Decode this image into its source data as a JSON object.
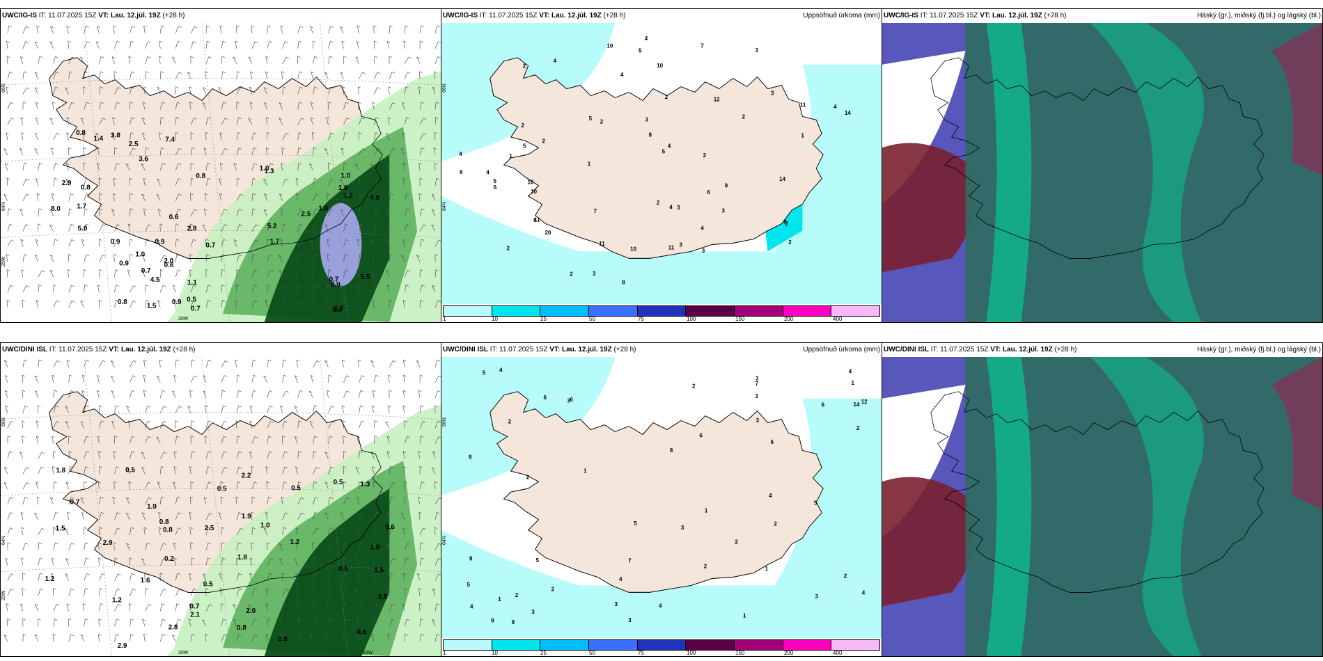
{
  "panels": [
    {
      "model": "UWC/IG-IS",
      "it_label": "IT:",
      "it": "11.07.2025 15Z",
      "vt_label": "VT:",
      "vt": "Lau. 12.júl. 19Z",
      "lead": "(+28 h)",
      "right_title": "",
      "values": [
        "0.8",
        "1.7",
        "0.9",
        "2.0",
        "1.5",
        "0.9",
        "2.5",
        "0.9",
        "0.6",
        "0.7",
        "1.0",
        "0.7",
        "0.6",
        "1.0",
        "1.1",
        "0.9",
        "0.7",
        "0.8",
        "0.5",
        "1.0",
        "1.7",
        "1.0",
        "1.2",
        "0.7",
        "0.8",
        "0.9",
        "2.5",
        "3.6",
        "5.2",
        "4.9",
        "5.0",
        "8.0",
        "7.4",
        "5.5",
        "6.3",
        "4.5",
        "2.9",
        "2.8",
        "1.4",
        "1.0",
        "1.7",
        "3.8",
        "1.3",
        "0.8"
      ],
      "lat_labels": [
        "66N",
        "64N",
        "25W"
      ],
      "lon_labels": [
        "20W"
      ]
    },
    {
      "model": "UWC/IG-IS",
      "it_label": "IT:",
      "it": "11.07.2025 15Z",
      "vt_label": "VT:",
      "vt": "Lau. 12.júl. 19Z",
      "lead": "(+28 h)",
      "right_title": "Uppsöfnuð úrkoma (mm)",
      "values": [
        "2",
        "3",
        "4",
        "3",
        "4",
        "2",
        "10",
        "11",
        "11",
        "2",
        "4",
        "4",
        "3",
        "5",
        "8",
        "10",
        "2",
        "4",
        "6",
        "3",
        "3",
        "5",
        "4",
        "4",
        "8",
        "11",
        "5",
        "7",
        "2",
        "9",
        "2",
        "20",
        "3",
        "2",
        "2",
        "6",
        "4",
        "2",
        "12",
        "14",
        "14",
        "10",
        "10",
        "16",
        "6",
        "5",
        "6",
        "11",
        "7",
        "4",
        "2",
        "2",
        "3",
        "1",
        "1",
        "3",
        "5",
        "8",
        "2",
        "1"
      ],
      "lat_labels": [
        "66N",
        "64N"
      ],
      "lon_labels": []
    },
    {
      "model": "UWC/IG-IS",
      "it_label": "IT:",
      "it": "11.07.2025 15Z",
      "vt_label": "VT:",
      "vt": "Lau. 12.júl. 19Z",
      "lead": "(+28 h)",
      "right_title": "Háský (gr.), miðský (fj.bl.) og lágský (bl.)",
      "values": [],
      "lat_labels": [],
      "lon_labels": []
    },
    {
      "model": "UWC/DINI ISL",
      "it_label": "IT:",
      "it": "11.07.2025 15Z",
      "vt_label": "VT:",
      "vt": "Lau. 12.júl. 19Z",
      "lead": "(+28 h)",
      "right_title": "",
      "values": [
        "0.5",
        "1.2",
        "0.5",
        "0.5",
        "0.6",
        "0.8",
        "0.7",
        "1.2",
        "0.5",
        "0.8",
        "1.5",
        "1.9",
        "2.2",
        "2.8",
        "2.9",
        "2.5",
        "0.7",
        "0.6",
        "0.2",
        "1.0",
        "0.8",
        "0.8",
        "1.0",
        "2.0",
        "2.1",
        "2.8",
        "1.8",
        "1.6",
        "2.9",
        "1.5",
        "0.5",
        "0.5",
        "1.3",
        "1.9",
        "1.8",
        "1.2"
      ],
      "lat_labels": [
        "66N",
        "64N",
        "25W"
      ],
      "lon_labels": [
        "20W",
        "15W"
      ]
    },
    {
      "model": "UWC/DINI ISL",
      "it_label": "IT:",
      "it": "11.07.2025 15Z",
      "vt_label": "VT:",
      "vt": "Lau. 12.júl. 19Z",
      "lead": "(+28 h)",
      "right_title": "Uppsöfnuð úrkoma (mm)",
      "values": [
        "3",
        "4",
        "3",
        "4",
        "2",
        "12",
        "3",
        "5",
        "8",
        "5",
        "2",
        "3",
        "6",
        "2",
        "7",
        "1",
        "5",
        "5",
        "3",
        "2",
        "4",
        "2",
        "1",
        "6",
        "14",
        "2",
        "1",
        "3",
        "8",
        "4",
        "6",
        "9",
        "8",
        "6",
        "5",
        "4",
        "4",
        "3",
        "1",
        "2",
        "3",
        "6",
        "7",
        "9",
        "2",
        "1",
        "4",
        "3",
        "2",
        "2",
        "1"
      ],
      "lat_labels": [
        "66N",
        "64N"
      ],
      "lon_labels": []
    },
    {
      "model": "UWC/DINI ISL",
      "it_label": "IT:",
      "it": "11.07.2025 15Z",
      "vt_label": "VT:",
      "vt": "Lau. 12.júl. 19Z",
      "lead": "(+28 h)",
      "right_title": "Háský (gr.), miðský (fj.bl.) og lágský (bl.)",
      "values": [],
      "lat_labels": [],
      "lon_labels": []
    }
  ],
  "legend": {
    "labels": [
      "1",
      "10",
      "25",
      "50",
      "75",
      "100",
      "150",
      "200",
      "400"
    ],
    "colors": [
      "#b9fbfb",
      "#00e5ee",
      "#00bfff",
      "#3a70ff",
      "#2233bb",
      "#5a0044",
      "#a1007a",
      "#ff00c0",
      "#f7b8f7"
    ]
  },
  "colors": {
    "land": "#f4e6da",
    "precip_light": "#b8fbfb",
    "green_light": "#c8f0c0",
    "green_mid": "#5fb35f",
    "green_dark": "#0b4d1a",
    "cloud_high": "#00d59a",
    "cloud_mid": "#7a2030",
    "cloud_low": "#3a3ab0"
  }
}
